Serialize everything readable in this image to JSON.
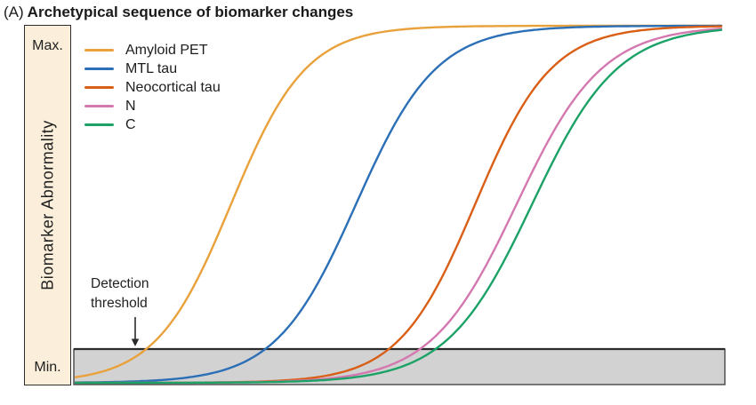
{
  "title": {
    "prefix": "(A)",
    "text": "Archetypical sequence of biomarker changes"
  },
  "y_axis": {
    "label": "Biomarker Abnormality",
    "max_label": "Max.",
    "min_label": "Min."
  },
  "threshold_annotation": {
    "line1": "Detection",
    "line2": "threshold"
  },
  "chart_data": {
    "type": "line",
    "title": "(A) Archetypical sequence of biomarker changes",
    "ylabel": "Biomarker Abnormality",
    "y_axis_tick_labels": [
      "Min.",
      "Max."
    ],
    "x_axis": "disease progression (unlabeled, normalized 0–1)",
    "ylim_normalized": [
      0,
      1
    ],
    "grid": false,
    "legend_position": "upper-left",
    "curve_model": "logistic sigmoid: y = 1 / (1 + exp(-(x - midpoint)/steepness))",
    "series": [
      {
        "name": "Amyloid PET",
        "color": "#e9a13b",
        "midpoint": 0.24,
        "steepness": 0.058
      },
      {
        "name": "MTL tau",
        "color": "#2b6fb7",
        "midpoint": 0.433,
        "steepness": 0.062
      },
      {
        "name": "Neocortical tau",
        "color": "#d95f16",
        "midpoint": 0.617,
        "steepness": 0.059
      },
      {
        "name": "N",
        "color": "#d478b0",
        "midpoint": 0.681,
        "steepness": 0.066
      },
      {
        "name": "C",
        "color": "#1ca266",
        "midpoint": 0.705,
        "steepness": 0.066
      }
    ],
    "detection_threshold": {
      "label": "Detection threshold",
      "level_normalized": 0.095,
      "band_fill": "#d2d2d2",
      "band_stroke": "#3a3a3a",
      "line_color": "#2b2b2b"
    },
    "panel_colors": {
      "y_axis_bar_fill": "#fbefdc",
      "y_axis_bar_border": "#2e2e2e"
    }
  }
}
